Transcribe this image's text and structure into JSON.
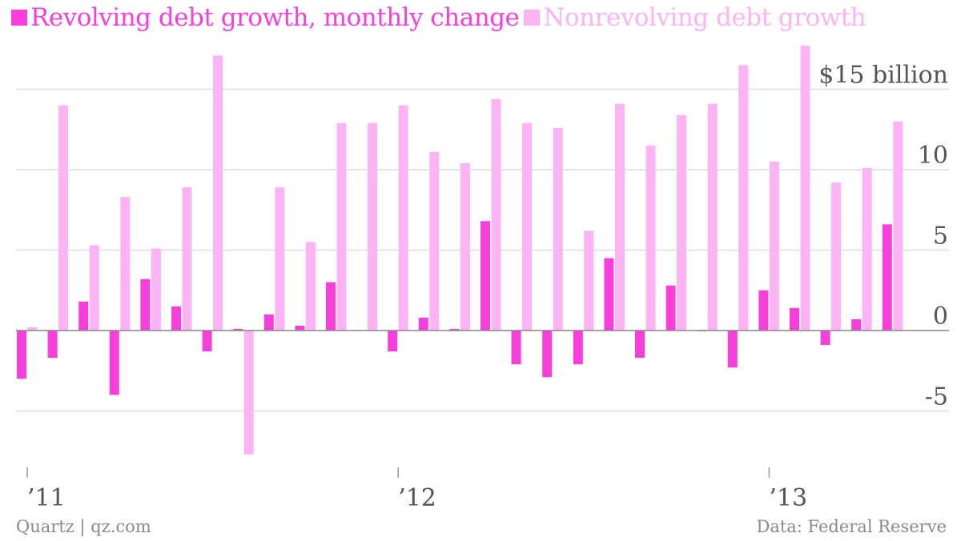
{
  "legend": {
    "revolving": "Revolving debt growth, monthly change",
    "nonrevolving": "Nonrevolving debt growth"
  },
  "footer": {
    "source_left": "Quartz | qz.com",
    "source_right": "Data: Federal Reserve"
  },
  "colors": {
    "revolving": "#f73fdc",
    "nonrevolving": "#fcb4f5",
    "grid": "#dddddd",
    "axis_text": "#555555",
    "zero_line": "#888888"
  },
  "chart_data": {
    "type": "bar",
    "ylim": [
      -8.5,
      17.5
    ],
    "y_ticks": [
      {
        "value": 15,
        "label": "$15 billion"
      },
      {
        "value": 10,
        "label": "10"
      },
      {
        "value": 5,
        "label": "5"
      },
      {
        "value": 0,
        "label": "0"
      },
      {
        "value": -5,
        "label": "-5"
      }
    ],
    "x_ticks": [
      {
        "label": "’11",
        "month_index": 0
      },
      {
        "label": "’12",
        "month_index": 12
      },
      {
        "label": "’13",
        "month_index": 24
      }
    ],
    "categories": [
      "2011-01",
      "2011-02",
      "2011-03",
      "2011-04",
      "2011-05",
      "2011-06",
      "2011-07",
      "2011-08",
      "2011-09",
      "2011-10",
      "2011-11",
      "2011-12",
      "2012-01",
      "2012-02",
      "2012-03",
      "2012-04",
      "2012-05",
      "2012-06",
      "2012-07",
      "2012-08",
      "2012-09",
      "2012-10",
      "2012-11",
      "2012-12",
      "2013-01",
      "2013-02",
      "2013-03",
      "2013-04",
      "2013-05"
    ],
    "series": [
      {
        "name": "Revolving debt growth, monthly change",
        "values": [
          -3.0,
          -1.7,
          1.8,
          -4.0,
          3.2,
          1.5,
          -1.3,
          0.1,
          1.0,
          0.3,
          3.0,
          0.0,
          -1.3,
          0.8,
          0.1,
          6.8,
          -2.1,
          -2.9,
          -2.1,
          4.5,
          -1.7,
          2.8,
          -0.05,
          -2.3,
          2.5,
          1.4,
          -0.9,
          0.7,
          6.6
        ]
      },
      {
        "name": "Nonrevolving debt growth",
        "values": [
          0.2,
          14.0,
          5.3,
          8.3,
          5.1,
          8.9,
          17.1,
          -7.7,
          8.9,
          5.5,
          12.9,
          12.9,
          14.0,
          11.1,
          10.4,
          14.4,
          12.9,
          12.6,
          6.2,
          14.1,
          11.5,
          13.4,
          14.1,
          16.5,
          10.5,
          17.7,
          9.2,
          10.1,
          13.0
        ]
      }
    ]
  }
}
